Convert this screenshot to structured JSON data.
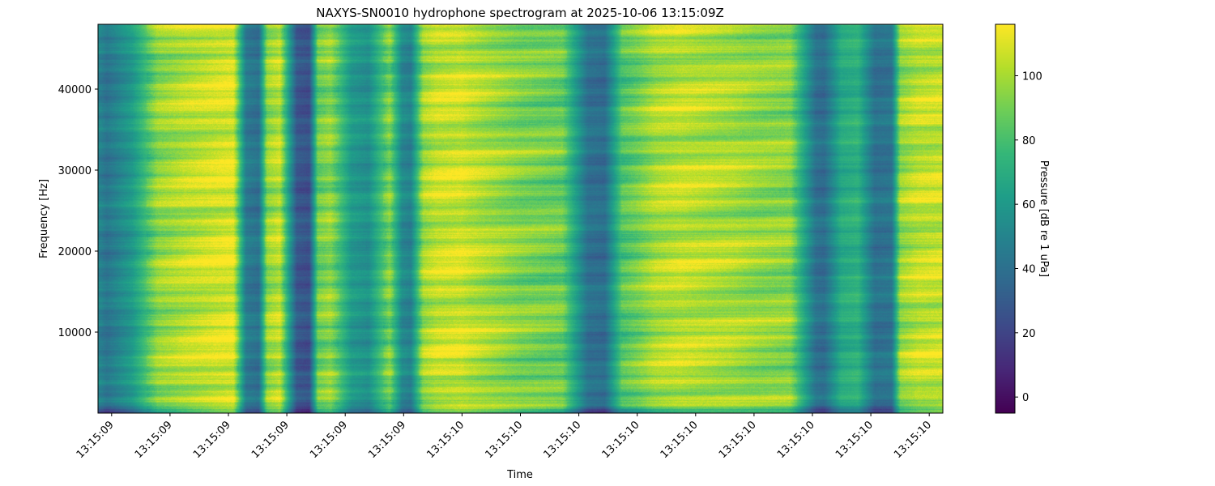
{
  "chart_data": {
    "type": "heatmap",
    "title": "NAXYS-SN0010 hydrophone spectrogram at 2025-10-06 13:15:09Z",
    "xlabel": "Time",
    "ylabel": "Frequency [Hz]",
    "colorbar_label": "Pressure [dB re 1 uPa]",
    "colormap": "viridis",
    "x_tick_labels": [
      "13:15:09",
      "13:15:09",
      "13:15:09",
      "13:15:09",
      "13:15:09",
      "13:15:09",
      "13:15:10",
      "13:15:10",
      "13:15:10",
      "13:15:10",
      "13:15:10",
      "13:15:10",
      "13:15:10",
      "13:15:10",
      "13:15:10"
    ],
    "y_ticks": [
      10000,
      20000,
      30000,
      40000
    ],
    "y_tick_labels": [
      "10000",
      "20000",
      "30000",
      "40000"
    ],
    "ylim": [
      0,
      48000
    ],
    "colorbar_ticks": [
      0,
      20,
      40,
      60,
      80,
      100
    ],
    "colorbar_tick_labels": [
      "0",
      "20",
      "40",
      "60",
      "80",
      "100"
    ],
    "clim": [
      -5,
      116
    ],
    "time_profile": {
      "description_points_fraction_of_span": [
        0.0,
        0.01,
        0.04,
        0.07,
        0.1,
        0.14,
        0.16,
        0.175,
        0.19,
        0.2,
        0.215,
        0.235,
        0.25,
        0.26,
        0.275,
        0.3,
        0.32,
        0.345,
        0.36,
        0.37,
        0.385,
        0.4,
        0.415,
        0.43,
        0.44,
        0.46,
        0.5,
        0.55,
        0.58,
        0.6,
        0.62,
        0.64,
        0.66,
        0.69,
        0.72,
        0.75,
        0.78,
        0.82,
        0.85,
        0.86,
        0.88,
        0.9,
        0.92,
        0.94,
        0.95,
        0.97,
        1.0
      ],
      "pressure_db": [
        50,
        42,
        60,
        95,
        102,
        108,
        110,
        45,
        40,
        96,
        104,
        28,
        25,
        88,
        95,
        60,
        55,
        92,
        52,
        48,
        98,
        105,
        106,
        107,
        104,
        100,
        92,
        88,
        40,
        38,
        82,
        90,
        100,
        104,
        102,
        100,
        96,
        94,
        40,
        38,
        68,
        72,
        40,
        42,
        96,
        104,
        106
      ]
    }
  }
}
